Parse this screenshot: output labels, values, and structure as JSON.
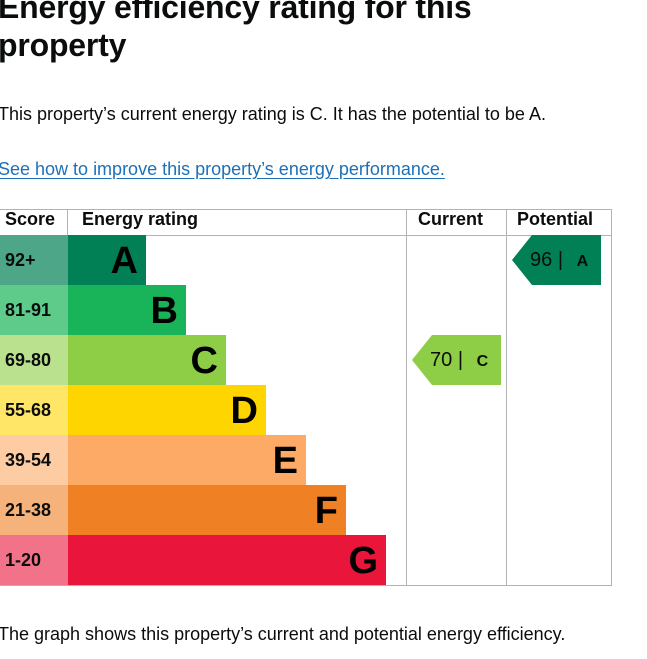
{
  "title": "Energy efficiency rating for this property",
  "intro": "This property’s current energy rating is C. It has the potential to be A.",
  "improve_link": "See how to improve this property’s energy performance.",
  "footer": "The graph shows this property’s current and potential energy efficiency.",
  "table": {
    "headers": {
      "score": "Score",
      "rating": "Energy rating",
      "current": "Current",
      "potential": "Potential"
    },
    "bands": [
      {
        "score": "92+",
        "letter": "A",
        "bar_color": "#008054",
        "score_bg": "#4da688",
        "text_color": "#000000"
      },
      {
        "score": "81-91",
        "letter": "B",
        "bar_color": "#19b459",
        "score_bg": "#5ecb8b",
        "text_color": "#000000"
      },
      {
        "score": "69-80",
        "letter": "C",
        "bar_color": "#8dce46",
        "score_bg": "#b9e18e",
        "text_color": "#000000"
      },
      {
        "score": "55-68",
        "letter": "D",
        "bar_color": "#ffd500",
        "score_bg": "#ffe666",
        "text_color": "#000000"
      },
      {
        "score": "39-54",
        "letter": "E",
        "bar_color": "#fcaa65",
        "score_bg": "#fdcca3",
        "text_color": "#000000"
      },
      {
        "score": "21-38",
        "letter": "F",
        "bar_color": "#ef8023",
        "score_bg": "#f5b37b",
        "text_color": "#000000"
      },
      {
        "score": "1-20",
        "letter": "G",
        "bar_color": "#e9153b",
        "score_bg": "#f27389",
        "text_color": "#000000"
      }
    ],
    "current": {
      "value": "70",
      "sep": "|",
      "band": "C",
      "color": "#8dce46"
    },
    "potential": {
      "value": "96",
      "sep": "|",
      "band": "A",
      "color": "#008054"
    }
  }
}
